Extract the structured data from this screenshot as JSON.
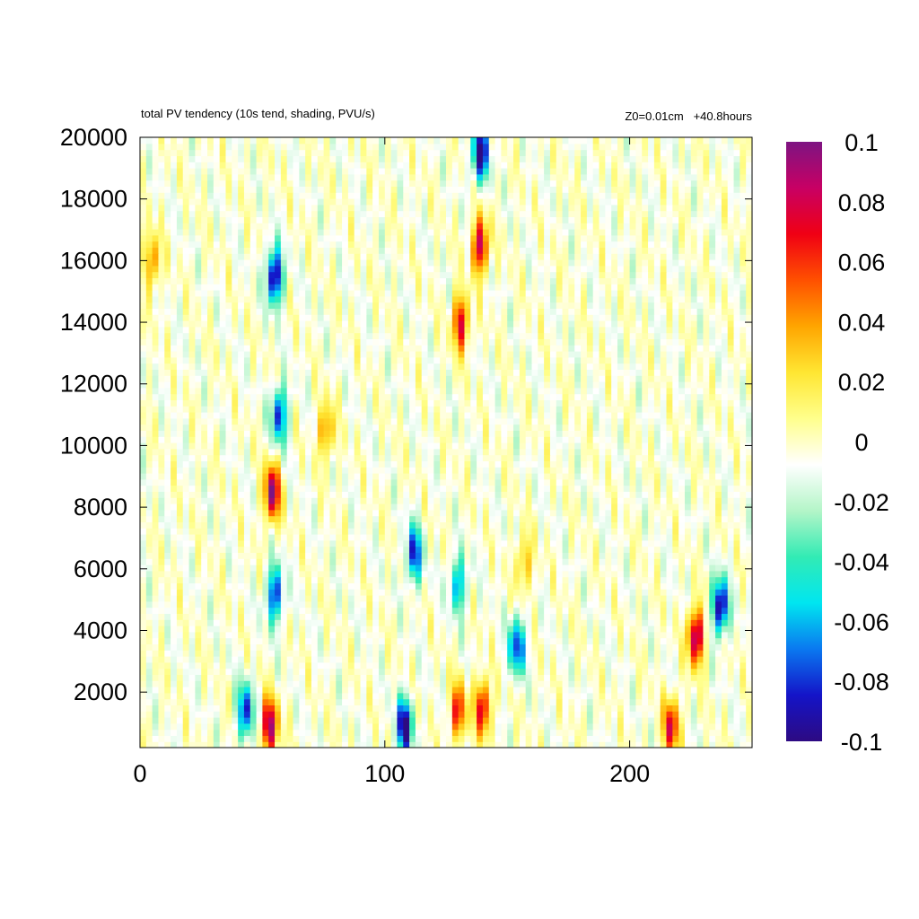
{
  "chart_data": {
    "type": "heatmap",
    "title": "total PV tendency (10s tend, shading, PVU/s)",
    "annotation": "Z0=0.01cm   +40.8hours",
    "xlabel": "",
    "ylabel": "",
    "xlim": [
      0,
      250
    ],
    "ylim": [
      200,
      20000
    ],
    "x_ticks": [
      "0",
      "100",
      "200"
    ],
    "y_ticks": [
      "2000",
      "4000",
      "6000",
      "8000",
      "10000",
      "12000",
      "14000",
      "16000",
      "18000",
      "20000"
    ],
    "colorbar": {
      "range": [
        -0.1,
        0.1
      ],
      "ticks": [
        "0.1",
        "0.08",
        "0.06",
        "0.04",
        "0.02",
        "0",
        "-0.02",
        "-0.04",
        "-0.06",
        "-0.08",
        "-0.1"
      ],
      "colors": [
        "#2d0a82",
        "#1414c8",
        "#0a78f0",
        "#00e6f0",
        "#32ebb4",
        "#b4f5c8",
        "#ffffff",
        "#ffff8c",
        "#ffe632",
        "#ffa500",
        "#ff5000",
        "#f00014",
        "#c80064",
        "#7d1482"
      ]
    },
    "features": [
      {
        "x": 55,
        "y": 15500,
        "value": -0.1
      },
      {
        "x": 57,
        "y": 11000,
        "value": -0.08
      },
      {
        "x": 54,
        "y": 8500,
        "value": 0.1
      },
      {
        "x": 55,
        "y": 5200,
        "value": -0.08
      },
      {
        "x": 53,
        "y": 900,
        "value": 0.1
      },
      {
        "x": 43,
        "y": 1400,
        "value": -0.08
      },
      {
        "x": 108,
        "y": 900,
        "value": -0.1
      },
      {
        "x": 140,
        "y": 1500,
        "value": 0.08
      },
      {
        "x": 130,
        "y": 1400,
        "value": 0.07
      },
      {
        "x": 139,
        "y": 19500,
        "value": -0.1
      },
      {
        "x": 139,
        "y": 16500,
        "value": 0.09
      },
      {
        "x": 131,
        "y": 14000,
        "value": 0.08
      },
      {
        "x": 76,
        "y": 10500,
        "value": 0.05
      },
      {
        "x": 5,
        "y": 16000,
        "value": 0.05
      },
      {
        "x": 227,
        "y": 3800,
        "value": 0.1
      },
      {
        "x": 237,
        "y": 4800,
        "value": -0.1
      },
      {
        "x": 217,
        "y": 900,
        "value": 0.08
      },
      {
        "x": 154,
        "y": 3500,
        "value": -0.08
      },
      {
        "x": 112,
        "y": 6500,
        "value": -0.08
      },
      {
        "x": 157,
        "y": 6200,
        "value": 0.04
      },
      {
        "x": 130,
        "y": 5500,
        "value": -0.06
      }
    ]
  }
}
